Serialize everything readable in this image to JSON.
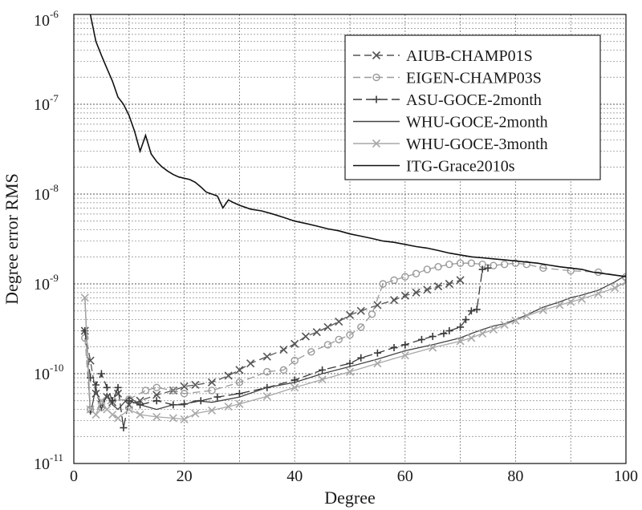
{
  "chart_data": {
    "type": "line",
    "title": "",
    "xlabel": "Degree",
    "ylabel": "Degree error RMS",
    "xlim": [
      0,
      100
    ],
    "ylim": [
      1e-11,
      1e-06
    ],
    "y_scale": "log",
    "grid": true,
    "legend_position": "top-right",
    "x_ticks": [
      "0",
      "20",
      "40",
      "60",
      "80",
      "100"
    ],
    "y_ticks": [
      {
        "base": "10",
        "exp": "-11",
        "value": 1e-11
      },
      {
        "base": "10",
        "exp": "-10",
        "value": 1e-10
      },
      {
        "base": "10",
        "exp": "-9",
        "value": 1e-09
      },
      {
        "base": "10",
        "exp": "-8",
        "value": 1e-08
      },
      {
        "base": "10",
        "exp": "-7",
        "value": 1e-07
      },
      {
        "base": "10",
        "exp": "-6",
        "value": 1e-06
      }
    ],
    "series": [
      {
        "name": "AIUB-CHAMP01S",
        "color": "#555555",
        "dash": "9,5",
        "marker": "x",
        "x": [
          2,
          3,
          4,
          5,
          6,
          7,
          8,
          10,
          12,
          15,
          18,
          20,
          22,
          25,
          28,
          30,
          32,
          35,
          38,
          40,
          42,
          44,
          46,
          48,
          50,
          52,
          55,
          58,
          60,
          62,
          64,
          66,
          68,
          70
        ],
        "y": [
          3e-10,
          1.4e-10,
          6e-11,
          4.5e-11,
          5.5e-11,
          4.8e-11,
          6e-11,
          4.5e-11,
          5e-11,
          5.8e-11,
          6.5e-11,
          7.2e-11,
          7.5e-11,
          8e-11,
          9.5e-11,
          1.1e-10,
          1.3e-10,
          1.55e-10,
          1.85e-10,
          2.15e-10,
          2.6e-10,
          2.9e-10,
          3.3e-10,
          3.8e-10,
          4.5e-10,
          5e-10,
          5.8e-10,
          6.6e-10,
          7.4e-10,
          8e-10,
          8.6e-10,
          9.4e-10,
          1e-09,
          1.1e-09
        ]
      },
      {
        "name": "EIGEN-CHAMP03S",
        "color": "#9a9a9a",
        "dash": "9,5",
        "marker": "o",
        "x": [
          2,
          3,
          5,
          7,
          10,
          13,
          15,
          18,
          20,
          25,
          30,
          35,
          38,
          40,
          43,
          46,
          48,
          50,
          52,
          54,
          56,
          58,
          60,
          62,
          64,
          66,
          68,
          70,
          72,
          74,
          76,
          78,
          80,
          82,
          85,
          90,
          95,
          100
        ],
        "y": [
          2.5e-10,
          4e-11,
          4.2e-11,
          5e-11,
          5.2e-11,
          6.5e-11,
          7e-11,
          6.5e-11,
          6e-11,
          6.5e-11,
          8e-11,
          1.05e-10,
          1.1e-10,
          1.4e-10,
          1.75e-10,
          2.1e-10,
          2.4e-10,
          2.7e-10,
          3.3e-10,
          4.6e-10,
          1e-09,
          1.1e-09,
          1.2e-09,
          1.3e-09,
          1.45e-09,
          1.55e-09,
          1.65e-09,
          1.7e-09,
          1.7e-09,
          1.65e-09,
          1.6e-09,
          1.65e-09,
          1.7e-09,
          1.65e-09,
          1.5e-09,
          1.4e-09,
          1.35e-09,
          1.2e-09
        ]
      },
      {
        "name": "ASU-GOCE-2month",
        "color": "#3a3a3a",
        "dash": "11,5",
        "marker": "+",
        "x": [
          2,
          3,
          4,
          5,
          6,
          7,
          8,
          9,
          10,
          12,
          15,
          18,
          20,
          23,
          26,
          30,
          35,
          40,
          45,
          50,
          52,
          55,
          58,
          60,
          63,
          65,
          67,
          68,
          70,
          71,
          72,
          73,
          74,
          75
        ],
        "y": [
          3e-10,
          9e-11,
          7.5e-11,
          1e-10,
          7e-11,
          5e-11,
          7e-11,
          2.5e-11,
          5e-11,
          4.5e-11,
          5e-11,
          4.5e-11,
          4.6e-11,
          5e-11,
          5.5e-11,
          6e-11,
          7e-11,
          8.5e-11,
          1.1e-10,
          1.3e-10,
          1.5e-10,
          1.7e-10,
          1.95e-10,
          2.1e-10,
          2.4e-10,
          2.6e-10,
          2.8e-10,
          3e-10,
          3.3e-10,
          4e-10,
          5e-10,
          5.2e-10,
          1.45e-09,
          1.5e-09
        ]
      },
      {
        "name": "WHU-GOCE-2month",
        "color": "#444444",
        "dash": "",
        "marker": "",
        "x": [
          2,
          3,
          4,
          5,
          6,
          7,
          8,
          10,
          12,
          15,
          18,
          20,
          22,
          25,
          28,
          30,
          35,
          40,
          45,
          50,
          55,
          60,
          65,
          70,
          72,
          74,
          76,
          78,
          80,
          82,
          85,
          88,
          90,
          92,
          95,
          98,
          100
        ],
        "y": [
          7e-10,
          3.5e-11,
          7e-11,
          4e-11,
          6e-11,
          4.5e-11,
          4e-11,
          5.5e-11,
          4.5e-11,
          4e-11,
          4.5e-11,
          4.5e-11,
          5e-11,
          4.8e-11,
          5.2e-11,
          5.5e-11,
          7e-11,
          8e-11,
          1e-10,
          1.2e-10,
          1.45e-10,
          1.8e-10,
          2.1e-10,
          2.5e-10,
          2.8e-10,
          3.1e-10,
          3.4e-10,
          3.6e-10,
          4e-10,
          4.5e-10,
          5.5e-10,
          6.3e-10,
          7e-10,
          7.5e-10,
          8.5e-10,
          1.05e-09,
          1.25e-09
        ]
      },
      {
        "name": "WHU-GOCE-3month",
        "color": "#a8a8a8",
        "dash": "",
        "marker": "x",
        "x": [
          2,
          3,
          4,
          5,
          6,
          7,
          8,
          10,
          12,
          15,
          18,
          20,
          22,
          25,
          28,
          30,
          35,
          40,
          45,
          50,
          55,
          60,
          65,
          70,
          72,
          74,
          76,
          78,
          80,
          82,
          85,
          88,
          90,
          92,
          95,
          98,
          100
        ],
        "y": [
          7e-10,
          4e-11,
          3.5e-11,
          5e-11,
          4e-11,
          3.5e-11,
          3.2e-11,
          4e-11,
          3.5e-11,
          3.3e-11,
          3.2e-11,
          3.1e-11,
          3.6e-11,
          3.9e-11,
          4.3e-11,
          4.6e-11,
          5.6e-11,
          7e-11,
          8.6e-11,
          1.05e-10,
          1.3e-10,
          1.6e-10,
          1.95e-10,
          2.3e-10,
          2.5e-10,
          2.8e-10,
          3.1e-10,
          3.5e-10,
          3.9e-10,
          4.4e-10,
          5.1e-10,
          5.8e-10,
          6.3e-10,
          6.8e-10,
          7.8e-10,
          9e-10,
          1.05e-09
        ]
      },
      {
        "name": "ITG-Grace2010s",
        "color": "#111111",
        "dash": "",
        "marker": "",
        "x": [
          3,
          4,
          5,
          6,
          7,
          8,
          9,
          10,
          11,
          12,
          13,
          14,
          15,
          16,
          17,
          18,
          19,
          20,
          21,
          22,
          23,
          24,
          25,
          26,
          27,
          28,
          29,
          30,
          32,
          34,
          36,
          38,
          40,
          42,
          44,
          46,
          48,
          50,
          52,
          54,
          56,
          58,
          60,
          62,
          64,
          66,
          68,
          70,
          72,
          74,
          76,
          78,
          80,
          82,
          84,
          86,
          88,
          90,
          92,
          94,
          96,
          98,
          100
        ],
        "y": [
          1e-06,
          5e-07,
          3.5e-07,
          2.5e-07,
          1.8e-07,
          1.2e-07,
          1e-07,
          7.5e-08,
          5e-08,
          3e-08,
          4.5e-08,
          2.8e-08,
          2.3e-08,
          2e-08,
          1.8e-08,
          1.65e-08,
          1.55e-08,
          1.5e-08,
          1.45e-08,
          1.35e-08,
          1.2e-08,
          1.05e-08,
          1e-08,
          9.5e-09,
          7e-09,
          8.6e-09,
          8e-09,
          7.5e-09,
          6.8e-09,
          6.5e-09,
          6e-09,
          5.5e-09,
          5e-09,
          4.7e-09,
          4.4e-09,
          4.1e-09,
          3.9e-09,
          3.6e-09,
          3.4e-09,
          3.2e-09,
          3e-09,
          2.9e-09,
          2.75e-09,
          2.6e-09,
          2.5e-09,
          2.35e-09,
          2.2e-09,
          2.1e-09,
          2e-09,
          1.95e-09,
          1.9e-09,
          1.85e-09,
          1.8e-09,
          1.75e-09,
          1.7e-09,
          1.62e-09,
          1.55e-09,
          1.5e-09,
          1.45e-09,
          1.35e-09,
          1.3e-09,
          1.25e-09,
          1.2e-09
        ]
      }
    ]
  }
}
